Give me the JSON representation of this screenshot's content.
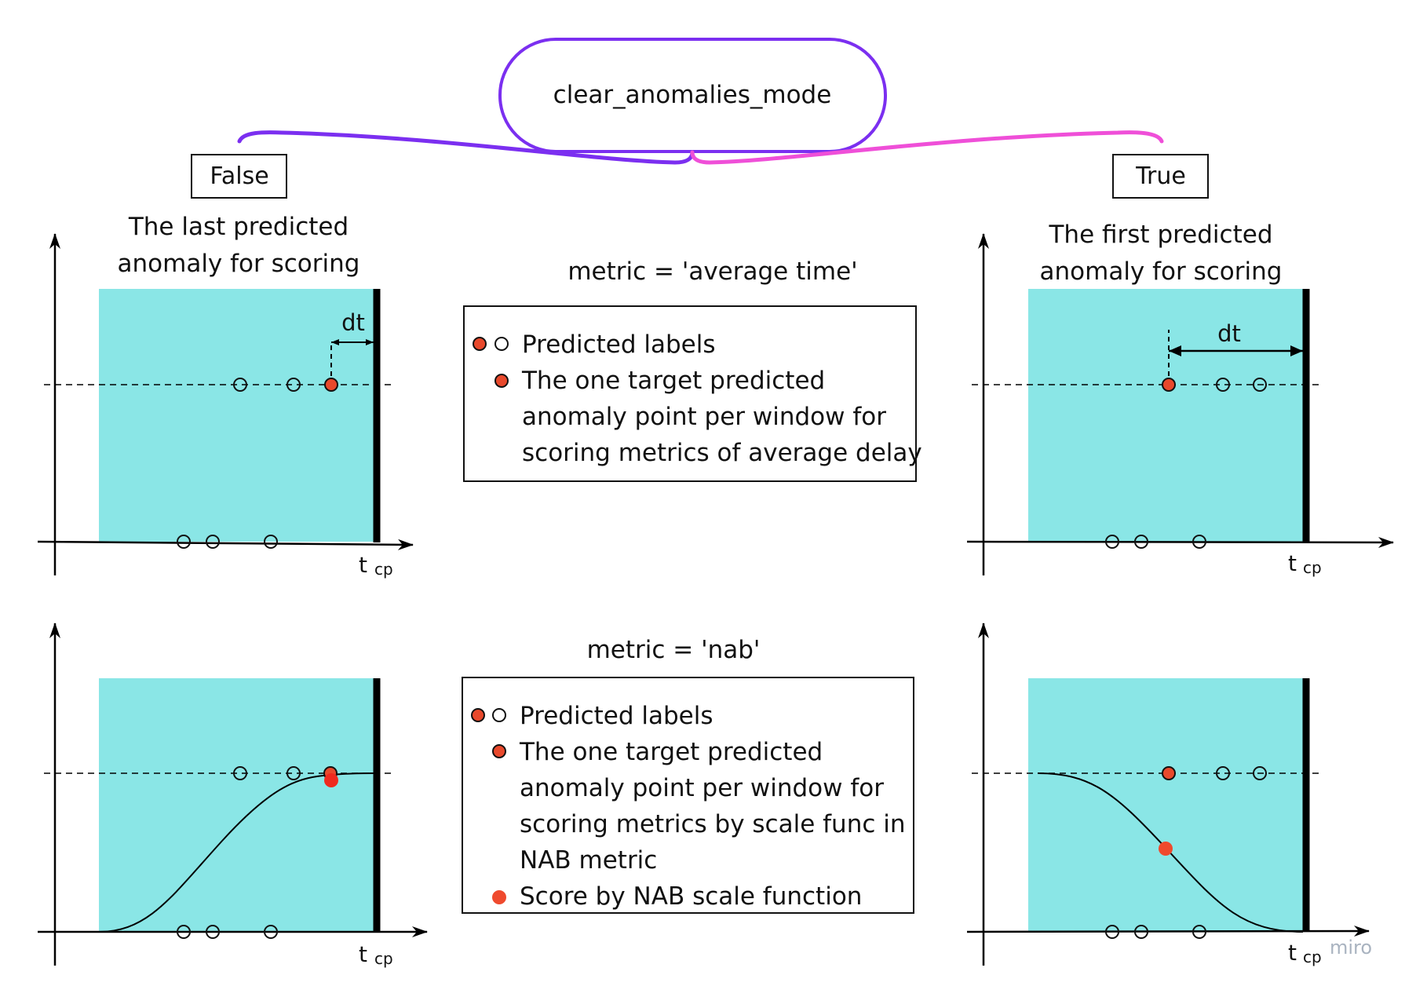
{
  "header": {
    "mode_label": "clear_anomalies_mode"
  },
  "options": {
    "false_label": "False",
    "true_label": "True",
    "false_desc_line1": "The last predicted",
    "false_desc_line2": "anomaly for scoring",
    "true_desc_line1": "The first predicted",
    "true_desc_line2": "anomaly for scoring"
  },
  "metrics": {
    "average_time_label": "metric = 'average time'",
    "nab_label": "metric = 'nab'"
  },
  "legend_avg": {
    "items": [
      {
        "lines": [
          "Predicted labels"
        ]
      },
      {
        "lines": [
          "The one target predicted",
          "anomaly point per window for",
          "scoring metrics of average delay"
        ]
      }
    ]
  },
  "legend_nab": {
    "items": [
      {
        "lines": [
          "Predicted labels"
        ]
      },
      {
        "lines": [
          "The one target predicted",
          "anomaly point per window for",
          "scoring metrics by scale func in",
          "NAB metric"
        ]
      },
      {
        "lines": [
          "Score by NAB scale function"
        ]
      }
    ]
  },
  "axis": {
    "t_label": "t",
    "cp_label": "cp",
    "dt_label": "dt"
  },
  "watermark": "miro",
  "colors": {
    "window_fill": "#8ae6e6",
    "predicted_red": "#e8492c",
    "score_red": "#ef4a2e",
    "bracket_purple": "#7b2ff0",
    "bracket_pink": "#ef4fd8"
  }
}
